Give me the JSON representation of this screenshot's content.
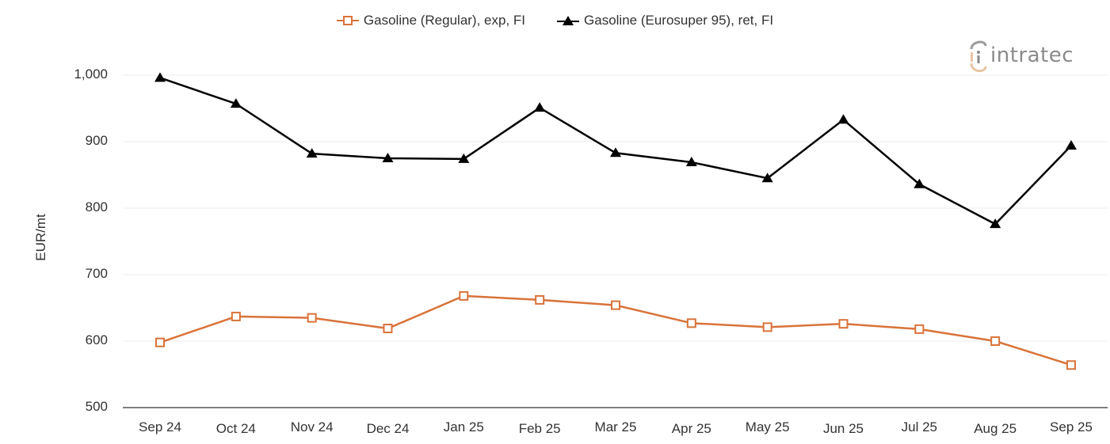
{
  "chart_data": {
    "type": "line",
    "title": "",
    "xlabel": "",
    "ylabel": "EUR/mt",
    "ylim": [
      500,
      1000
    ],
    "yticks": [
      "500",
      "600",
      "700",
      "800",
      "900",
      "1,000"
    ],
    "grid": true,
    "legend_position": "top",
    "categories": [
      "Sep 24",
      "Oct 24",
      "Nov 24",
      "Dec 24",
      "Jan 25",
      "Feb 25",
      "Mar 25",
      "Apr 25",
      "May 25",
      "Jun 25",
      "Jul 25",
      "Aug 25",
      "Sep 25"
    ],
    "series": [
      {
        "name": "Gasoline (Regular), exp, FI",
        "color": "#d9733a",
        "marker": "open-square",
        "values": [
          598,
          637,
          635,
          619,
          668,
          662,
          654,
          627,
          621,
          626,
          618,
          600,
          564
        ]
      },
      {
        "name": "Gasoline (Eurosuper 95), ret, FI",
        "color": "#000000",
        "marker": "filled-triangle",
        "values": [
          996,
          957,
          882,
          875,
          874,
          951,
          883,
          869,
          845,
          933,
          836,
          776,
          894
        ]
      }
    ]
  },
  "branding": {
    "logo_text": "intratec"
  }
}
